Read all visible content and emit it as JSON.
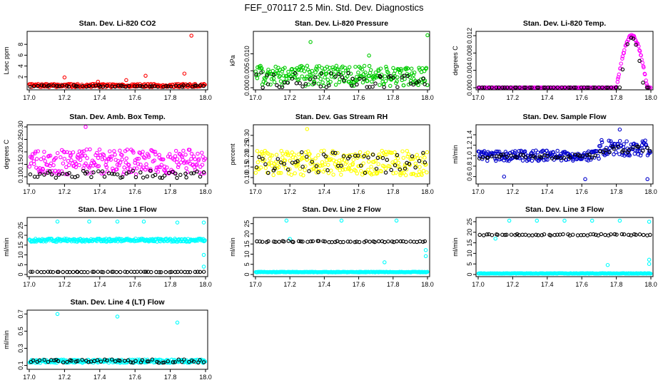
{
  "figure_title": "FEF_070117  2.5 Min. Std. Dev. Diagnostics",
  "chart_data": [
    {
      "type": "scatter",
      "title": "Stan. Dev. Li-820 CO2",
      "ylabel": "Lsec ppm",
      "xlim": [
        17.0,
        18.0
      ],
      "ylim": [
        0,
        10
      ],
      "xticks": [
        17.0,
        17.2,
        17.4,
        17.6,
        17.8,
        18.0
      ],
      "xticklabels": [
        "17.0",
        "17.2",
        "17.4",
        "17.6",
        "17.8",
        "18.0"
      ],
      "yticks": [
        2,
        4,
        6,
        8
      ],
      "yticklabels": [
        "2",
        "4",
        "6",
        "8"
      ],
      "series": [
        {
          "name": "colored",
          "color": "#ff0000",
          "base": 0.4,
          "spread": 0.3,
          "outliers": [
            [
              17.2,
              1.9
            ],
            [
              17.55,
              1.4
            ],
            [
              17.66,
              2.2
            ],
            [
              17.88,
              2.6
            ],
            [
              17.92,
              9.6
            ],
            [
              17.39,
              1.1
            ]
          ]
        },
        {
          "name": "black",
          "color": "#000000",
          "base": 0.3,
          "spread": 0.15,
          "outliers": []
        }
      ]
    },
    {
      "type": "scatter",
      "title": "Stan. Dev. Li-820 Pressure",
      "ylabel": "kPa",
      "xlim": [
        17.0,
        18.0
      ],
      "ylim": [
        0,
        0.016
      ],
      "xticks": [
        17.0,
        17.2,
        17.4,
        17.6,
        17.8,
        18.0
      ],
      "xticklabels": [
        "17.0",
        "17.2",
        "17.4",
        "17.6",
        "17.8",
        "18.0"
      ],
      "yticks": [
        0,
        0.005,
        0.01
      ],
      "yticklabels": [
        "0.000",
        "0.005",
        "0.010"
      ],
      "series": [
        {
          "name": "colored",
          "color": "#00cc00",
          "base": 0.0035,
          "spread": 0.003,
          "outliers": [
            [
              17.32,
              0.0135
            ],
            [
              17.66,
              0.0095
            ],
            [
              18.0,
              0.0155
            ]
          ]
        },
        {
          "name": "black",
          "color": "#000000",
          "base": 0.002,
          "spread": 0.0025,
          "outliers": []
        }
      ]
    },
    {
      "type": "scatter",
      "title": "Stan. Dev. Li-820 Temp.",
      "ylabel": "degrees C",
      "xlim": [
        17.0,
        18.0
      ],
      "ylim": [
        0,
        0.0125
      ],
      "xticks": [
        17.0,
        17.2,
        17.4,
        17.6,
        17.8,
        18.0
      ],
      "xticklabels": [
        "17.0",
        "17.2",
        "17.4",
        "17.6",
        "17.8",
        "18.0"
      ],
      "yticks": [
        0,
        0.004,
        0.008,
        0.012
      ],
      "yticklabels": [
        "0.000",
        "0.004",
        "0.008",
        "0.012"
      ],
      "series": [
        {
          "name": "colored",
          "color": "#ff00ff",
          "base": 0.0,
          "spread": 0.0,
          "peak_start": 17.8,
          "peak_end": 17.98,
          "peak_max": 0.012,
          "outliers": []
        },
        {
          "name": "black",
          "color": "#000000",
          "base": 0.0,
          "spread": 0.0,
          "peak_start": 17.82,
          "peak_end": 17.96,
          "peak_max": 0.0118,
          "outliers": []
        }
      ]
    },
    {
      "type": "scatter",
      "title": "Stan. Dev. Amb. Box Temp.",
      "ylabel": "degrees C",
      "xlim": [
        17.0,
        18.0
      ],
      "ylim": [
        0.08,
        0.3
      ],
      "xticks": [
        17.0,
        17.2,
        17.4,
        17.6,
        17.8,
        18.0
      ],
      "xticklabels": [
        "17.0",
        "17.2",
        "17.4",
        "17.6",
        "17.8",
        "18.0"
      ],
      "yticks": [
        0.1,
        0.15,
        0.2,
        0.25,
        0.3
      ],
      "yticklabels": [
        "0.10",
        "0.15",
        "0.20",
        "0.25",
        "0.30"
      ],
      "series": [
        {
          "name": "colored",
          "color": "#ff00ff",
          "base": 0.16,
          "spread": 0.05,
          "outliers": [
            [
              17.32,
              0.3
            ]
          ]
        },
        {
          "name": "black",
          "color": "#000000",
          "base": 0.11,
          "spread": 0.015,
          "outliers": []
        }
      ]
    },
    {
      "type": "scatter",
      "title": "Stan. Dev. Gas Stream RH",
      "ylabel": "percent",
      "xlim": [
        17.0,
        18.0
      ],
      "ylim": [
        0.08,
        0.34
      ],
      "xticks": [
        17.0,
        17.2,
        17.4,
        17.6,
        17.8,
        18.0
      ],
      "xticklabels": [
        "17.0",
        "17.2",
        "17.4",
        "17.6",
        "17.8",
        "18.0"
      ],
      "yticks": [
        0.1,
        0.15,
        0.2,
        0.25,
        0.3
      ],
      "yticklabels": [
        "0.10",
        "0.15",
        "0.20",
        "0.25",
        "0.30"
      ],
      "series": [
        {
          "name": "colored",
          "color": "#ffff00",
          "base": 0.17,
          "spread": 0.06,
          "outliers": [
            [
              17.3,
              0.33
            ]
          ]
        },
        {
          "name": "black",
          "color": "#000000",
          "base": 0.17,
          "spread": 0.05,
          "outliers": []
        }
      ]
    },
    {
      "type": "scatter",
      "title": "Stan. Dev. Sample Flow",
      "ylabel": "ml/min",
      "xlim": [
        17.0,
        18.0
      ],
      "ylim": [
        0.5,
        1.55
      ],
      "xticks": [
        17.0,
        17.2,
        17.4,
        17.6,
        17.8,
        18.0
      ],
      "xticklabels": [
        "17.0",
        "17.2",
        "17.4",
        "17.6",
        "17.8",
        "18.0"
      ],
      "yticks": [
        0.6,
        0.8,
        1.0,
        1.2,
        1.4
      ],
      "yticklabels": [
        "0.6",
        "0.8",
        "1.0",
        "1.2",
        "1.4"
      ],
      "series": [
        {
          "name": "colored",
          "color": "#0000cc",
          "base": 1.0,
          "spread": 0.1,
          "step_at": 17.7,
          "step_base": 1.15,
          "step_spread": 0.15,
          "outliers": [
            [
              17.15,
              0.6
            ],
            [
              17.62,
              0.55
            ],
            [
              17.82,
              1.5
            ],
            [
              17.98,
              0.55
            ]
          ]
        },
        {
          "name": "black",
          "color": "#000000",
          "base": 0.98,
          "spread": 0.04,
          "step_at": 17.7,
          "step_base": 1.12,
          "step_spread": 0.06,
          "outliers": []
        }
      ]
    },
    {
      "type": "scatter",
      "title": "Stan. Dev. Line 1 Flow",
      "ylabel": "ml/min",
      "xlim": [
        17.0,
        18.0
      ],
      "ylim": [
        0,
        28
      ],
      "xticks": [
        17.0,
        17.2,
        17.4,
        17.6,
        17.8,
        18.0
      ],
      "xticklabels": [
        "17.0",
        "17.2",
        "17.4",
        "17.6",
        "17.8",
        "18.0"
      ],
      "yticks": [
        0,
        5,
        10,
        15,
        20,
        25
      ],
      "yticklabels": [
        "0",
        "5",
        "10",
        "15",
        "20",
        "25"
      ],
      "series": [
        {
          "name": "colored",
          "color": "#00ffff",
          "base": 17.5,
          "spread": 0.8,
          "outliers": [
            [
              17.16,
              27.0
            ],
            [
              17.34,
              27.0
            ],
            [
              17.5,
              27.0
            ],
            [
              17.65,
              27.0
            ],
            [
              17.84,
              26.5
            ],
            [
              17.99,
              26.5
            ],
            [
              17.99,
              10.0
            ],
            [
              17.99,
              4.0
            ]
          ]
        },
        {
          "name": "black",
          "color": "#000000",
          "base": 1.3,
          "spread": 0.1,
          "outliers": []
        }
      ]
    },
    {
      "type": "scatter",
      "title": "Stan. Dev. Line 2 Flow",
      "ylabel": "ml/min",
      "xlim": [
        17.0,
        18.0
      ],
      "ylim": [
        0,
        27
      ],
      "xticks": [
        17.0,
        17.2,
        17.4,
        17.6,
        17.8,
        18.0
      ],
      "xticklabels": [
        "17.0",
        "17.2",
        "17.4",
        "17.6",
        "17.8",
        "18.0"
      ],
      "yticks": [
        0,
        5,
        10,
        15,
        20,
        25
      ],
      "yticklabels": [
        "0",
        "5",
        "10",
        "15",
        "20",
        "25"
      ],
      "series": [
        {
          "name": "colored",
          "color": "#00ffff",
          "base": 1.2,
          "spread": 0.15,
          "outliers": [
            [
              17.18,
              26.5
            ],
            [
              17.5,
              26.5
            ],
            [
              17.82,
              26.5
            ],
            [
              17.75,
              6.0
            ],
            [
              17.99,
              12.0
            ],
            [
              17.99,
              9.0
            ],
            [
              17.2,
              17.5
            ]
          ]
        },
        {
          "name": "black",
          "color": "#000000",
          "base": 16.2,
          "spread": 0.3,
          "outliers": []
        }
      ]
    },
    {
      "type": "scatter",
      "title": "Stan. Dev. Line 3 Flow",
      "ylabel": "ml/min",
      "xlim": [
        17.0,
        18.0
      ],
      "ylim": [
        0,
        26
      ],
      "xticks": [
        17.0,
        17.2,
        17.4,
        17.6,
        17.8,
        18.0
      ],
      "xticklabels": [
        "17.0",
        "17.2",
        "17.4",
        "17.6",
        "17.8",
        "18.0"
      ],
      "yticks": [
        0,
        5,
        10,
        15,
        20,
        25
      ],
      "yticklabels": [
        "0",
        "5",
        "10",
        "15",
        "20",
        "25"
      ],
      "series": [
        {
          "name": "colored",
          "color": "#00ffff",
          "base": 0.5,
          "spread": 0.1,
          "outliers": [
            [
              17.18,
              25.5
            ],
            [
              17.34,
              25.5
            ],
            [
              17.5,
              25.5
            ],
            [
              17.66,
              25.5
            ],
            [
              17.82,
              25.5
            ],
            [
              17.99,
              25.0
            ],
            [
              17.75,
              4.5
            ],
            [
              17.99,
              7.0
            ],
            [
              17.99,
              5.0
            ],
            [
              17.1,
              17.0
            ]
          ]
        },
        {
          "name": "black",
          "color": "#000000",
          "base": 18.8,
          "spread": 0.3,
          "outliers": []
        }
      ]
    },
    {
      "type": "scatter",
      "title": "Stan. Dev. Line 4 (LT) Flow",
      "ylabel": "ml/min",
      "xlim": [
        17.0,
        18.0
      ],
      "ylim": [
        0.08,
        0.72
      ],
      "xticks": [
        17.0,
        17.2,
        17.4,
        17.6,
        17.8,
        18.0
      ],
      "xticklabels": [
        "17.0",
        "17.2",
        "17.4",
        "17.6",
        "17.8",
        "18.0"
      ],
      "yticks": [
        0.1,
        0.3,
        0.5,
        0.7
      ],
      "yticklabels": [
        "0.1",
        "0.3",
        "0.5",
        "0.7"
      ],
      "series": [
        {
          "name": "colored",
          "color": "#00ffff",
          "base": 0.15,
          "spread": 0.02,
          "outliers": [
            [
              17.16,
              0.7
            ],
            [
              17.5,
              0.67
            ],
            [
              17.84,
              0.6
            ]
          ]
        },
        {
          "name": "black",
          "color": "#000000",
          "base": 0.15,
          "spread": 0.02,
          "outliers": []
        }
      ]
    }
  ]
}
